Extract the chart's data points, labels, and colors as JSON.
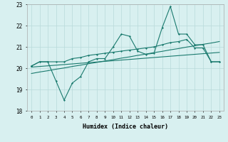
{
  "xlabel": "Humidex (Indice chaleur)",
  "x": [
    0,
    1,
    2,
    3,
    4,
    5,
    6,
    7,
    8,
    9,
    10,
    11,
    12,
    13,
    14,
    15,
    16,
    17,
    18,
    19,
    20,
    21,
    22,
    23
  ],
  "line1": [
    20.1,
    20.3,
    20.3,
    20.3,
    20.3,
    20.45,
    20.5,
    20.6,
    20.65,
    20.7,
    20.75,
    20.8,
    20.85,
    20.9,
    20.95,
    21.0,
    21.1,
    21.2,
    21.25,
    21.35,
    20.95,
    20.95,
    20.3,
    20.3
  ],
  "line2": [
    20.1,
    20.3,
    20.3,
    19.4,
    18.5,
    19.3,
    19.6,
    20.3,
    20.45,
    20.45,
    21.0,
    21.6,
    21.5,
    20.8,
    20.65,
    20.7,
    21.9,
    22.9,
    21.6,
    21.6,
    21.1,
    21.1,
    20.3,
    20.3
  ],
  "line3": [
    20.05,
    20.08,
    20.11,
    20.14,
    20.17,
    20.2,
    20.23,
    20.26,
    20.29,
    20.32,
    20.35,
    20.38,
    20.41,
    20.44,
    20.47,
    20.5,
    20.53,
    20.56,
    20.59,
    20.62,
    20.65,
    20.68,
    20.71,
    20.74
  ],
  "line4": [
    19.75,
    19.82,
    19.88,
    19.95,
    20.01,
    20.08,
    20.14,
    20.21,
    20.27,
    20.34,
    20.4,
    20.47,
    20.53,
    20.6,
    20.66,
    20.73,
    20.79,
    20.86,
    20.92,
    20.99,
    21.05,
    21.12,
    21.18,
    21.25
  ],
  "color": "#1a7a6e",
  "bg_color": "#d8f0f0",
  "grid_color": "#b8dada",
  "ylim": [
    18,
    23
  ],
  "xlim": [
    -0.5,
    23.5
  ],
  "yticks": [
    18,
    19,
    20,
    21,
    22,
    23
  ]
}
